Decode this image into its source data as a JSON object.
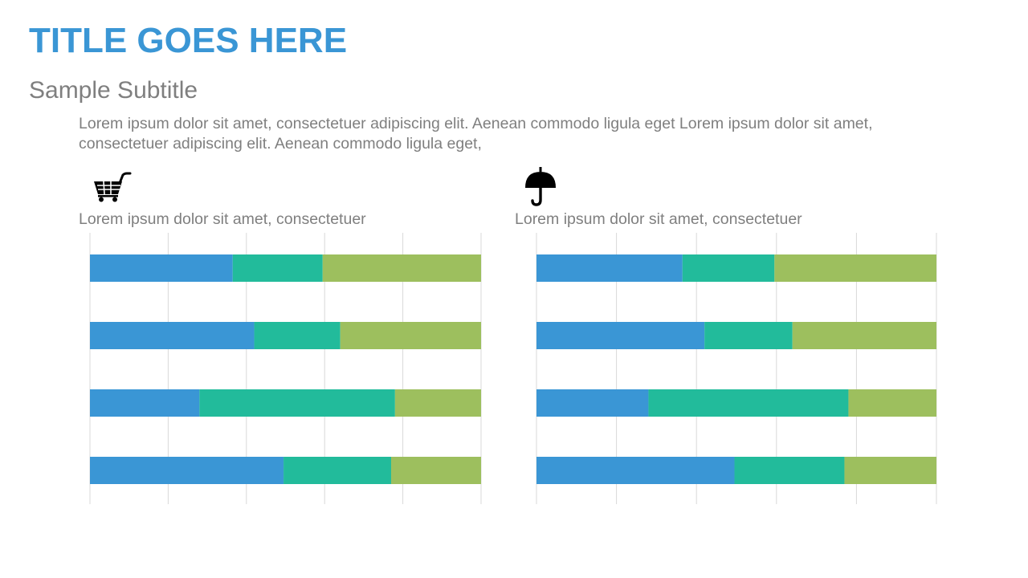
{
  "slide": {
    "title": "TITLE GOES HERE",
    "subtitle": "Sample Subtitle",
    "body": "Lorem ipsum dolor sit amet, consectetuer adipiscing elit. Aenean commodo ligula eget Lorem ipsum dolor sit amet, consectetuer adipiscing elit. Aenean commodo ligula eget,"
  },
  "panels": [
    {
      "icon": "shopping-cart-icon",
      "caption": "Lorem ipsum dolor sit amet, consectetuer"
    },
    {
      "icon": "umbrella-icon",
      "caption": "Lorem ipsum dolor sit amet, consectetuer"
    }
  ],
  "colors": {
    "series1": "#3a96d5",
    "series2": "#22bb9b",
    "series3": "#9dbf5e",
    "grid": "#d9d9d9"
  },
  "chart_data": [
    {
      "type": "bar",
      "orientation": "horizontal",
      "stacked": true,
      "xlim": [
        0,
        100
      ],
      "grid": true,
      "gridlines": 5,
      "series": [
        {
          "values": [
            36.5,
            42,
            28,
            49.5
          ]
        },
        {
          "values": [
            23,
            22,
            50,
            27.5
          ]
        },
        {
          "values": [
            40.5,
            36,
            22,
            23
          ]
        }
      ]
    },
    {
      "type": "bar",
      "orientation": "horizontal",
      "stacked": true,
      "xlim": [
        0,
        100
      ],
      "grid": true,
      "gridlines": 5,
      "series": [
        {
          "values": [
            36.5,
            42,
            28,
            49.5
          ]
        },
        {
          "values": [
            23,
            22,
            50,
            27.5
          ]
        },
        {
          "values": [
            40.5,
            36,
            22,
            23
          ]
        }
      ]
    }
  ]
}
